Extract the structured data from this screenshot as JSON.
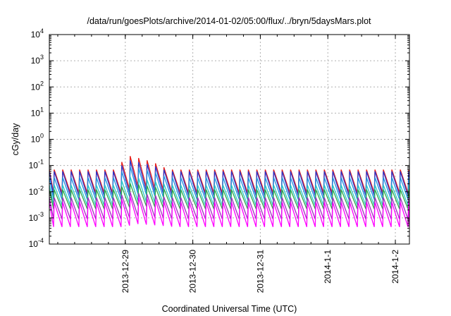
{
  "chart_data": {
    "type": "line",
    "title": "/data/run/goesPlots/archive/2014-01-02/05:00/flux/../bryn/5daysMars.plot",
    "xlabel": "Coordinated Universal Time (UTC)",
    "ylabel": "cGy/day",
    "yscale": "log",
    "ylim": [
      0.0001,
      10000
    ],
    "yticks": [
      {
        "exp": "-4",
        "value": 0.0001
      },
      {
        "exp": "-3",
        "value": 0.001
      },
      {
        "exp": "-2",
        "value": 0.01
      },
      {
        "exp": "-1",
        "value": 0.1
      },
      {
        "exp": "0",
        "value": 1
      },
      {
        "exp": "1",
        "value": 10
      },
      {
        "exp": "2",
        "value": 100
      },
      {
        "exp": "3",
        "value": 1000
      },
      {
        "exp": "4",
        "value": 10000
      }
    ],
    "xlim": [
      "2013-12-27T21:00",
      "2014-01-02T05:00"
    ],
    "xticks": [
      {
        "label": "2013-12-29",
        "value": "2013-12-29T00:00"
      },
      {
        "label": "2013-12-30",
        "value": "2013-12-30T00:00"
      },
      {
        "label": "2013-12-31",
        "value": "2013-12-31T00:00"
      },
      {
        "label": "2014-1-1",
        "value": "2014-01-01T00:00"
      },
      {
        "label": "2014-1-2",
        "value": "2014-01-02T00:00"
      }
    ],
    "grid": true,
    "legend": "none",
    "sawtooth_period_hours": 3,
    "series": [
      {
        "color": "#e8201c",
        "peak": 0.07,
        "trough": 0.009,
        "event_peak": 0.25
      },
      {
        "color": "#2e34c8",
        "peak": 0.06,
        "trough": 0.007,
        "event_peak": 0.17
      },
      {
        "color": "#1e90e0",
        "peak": 0.035,
        "trough": 0.005,
        "event_peak": 0.1
      },
      {
        "color": "#28c8c8",
        "peak": 0.018,
        "trough": 0.003,
        "event_peak": 0.04
      },
      {
        "color": "#2ea84a",
        "peak": 0.012,
        "trough": 0.0022,
        "event_peak": 0.022
      },
      {
        "color": "#a030c0",
        "peak": 0.006,
        "trough": 0.0009,
        "event_peak": 0.01
      },
      {
        "color": "#ff00ff",
        "peak": 0.004,
        "trough": 0.00045,
        "event_peak": 0.007
      }
    ],
    "event": {
      "start": "2013-12-28T22:00",
      "peak_time": "2013-12-29T00:00",
      "end": "2013-12-29T15:00"
    }
  }
}
